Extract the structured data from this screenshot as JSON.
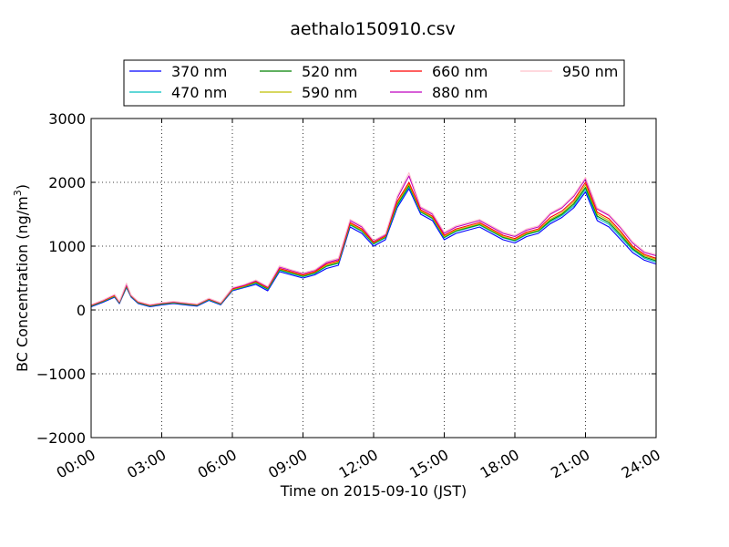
{
  "chart_data": {
    "type": "line",
    "title": "aethalo150910.csv",
    "xlabel": "Time on 2015-09-10 (JST)",
    "ylabel": "BC Concentration (ng/m",
    "ylabel_superscript": "3",
    "ylabel_suffix": ")",
    "xlim_hours": [
      0,
      24
    ],
    "ylim": [
      -2000,
      3000
    ],
    "x_ticks": [
      "00:00",
      "03:00",
      "06:00",
      "09:00",
      "12:00",
      "15:00",
      "18:00",
      "21:00",
      "24:00"
    ],
    "y_ticks": [
      -2000,
      -1000,
      0,
      1000,
      2000,
      3000
    ],
    "grid": true,
    "legend_placement": "top-center",
    "x_hours": [
      0,
      0.5,
      1,
      1.2,
      1.5,
      1.7,
      2,
      2.5,
      3,
      3.5,
      4,
      4.5,
      5,
      5.5,
      6,
      6.5,
      7,
      7.5,
      8,
      8.5,
      9,
      9.5,
      10,
      10.5,
      11,
      11.5,
      12,
      12.5,
      13,
      13.5,
      14,
      14.5,
      15,
      15.5,
      16,
      16.5,
      17,
      17.5,
      18,
      18.5,
      19,
      19.5,
      20,
      20.5,
      21,
      21.5,
      22,
      22.5,
      23,
      23.5,
      24
    ],
    "series": [
      {
        "name": "370 nm",
        "color": "#0000ff",
        "values": [
          50,
          120,
          200,
          100,
          350,
          200,
          100,
          50,
          80,
          100,
          80,
          60,
          150,
          80,
          300,
          350,
          400,
          300,
          600,
          550,
          500,
          550,
          650,
          700,
          1300,
          1200,
          1000,
          1100,
          1600,
          1900,
          1500,
          1400,
          1100,
          1200,
          1250,
          1300,
          1200,
          1100,
          1050,
          1150,
          1200,
          1350,
          1450,
          1600,
          1850,
          1400,
          1300,
          1100,
          900,
          780,
          720
        ]
      },
      {
        "name": "470 nm",
        "color": "#00bfbf",
        "values": [
          60,
          130,
          210,
          110,
          360,
          210,
          110,
          60,
          90,
          110,
          90,
          70,
          160,
          90,
          310,
          360,
          420,
          320,
          620,
          570,
          520,
          570,
          680,
          730,
          1330,
          1230,
          1030,
          1130,
          1630,
          1930,
          1530,
          1430,
          1130,
          1230,
          1280,
          1330,
          1230,
          1130,
          1080,
          1180,
          1230,
          1380,
          1480,
          1630,
          1890,
          1440,
          1340,
          1140,
          940,
          810,
          750
        ]
      },
      {
        "name": "520 nm",
        "color": "#008000",
        "values": [
          65,
          135,
          215,
          115,
          370,
          215,
          115,
          65,
          95,
          115,
          95,
          75,
          165,
          95,
          315,
          365,
          430,
          330,
          630,
          580,
          530,
          580,
          690,
          740,
          1340,
          1240,
          1040,
          1140,
          1650,
          1950,
          1540,
          1440,
          1140,
          1240,
          1290,
          1340,
          1240,
          1140,
          1090,
          1190,
          1240,
          1400,
          1500,
          1660,
          1920,
          1470,
          1370,
          1170,
          960,
          830,
          770
        ]
      },
      {
        "name": "590 nm",
        "color": "#bfbf00",
        "values": [
          70,
          140,
          220,
          120,
          380,
          220,
          120,
          70,
          100,
          120,
          100,
          80,
          170,
          100,
          320,
          370,
          440,
          340,
          640,
          590,
          540,
          590,
          700,
          750,
          1350,
          1250,
          1050,
          1150,
          1670,
          1970,
          1550,
          1450,
          1150,
          1250,
          1300,
          1350,
          1250,
          1150,
          1100,
          1200,
          1250,
          1420,
          1520,
          1690,
          1960,
          1500,
          1400,
          1200,
          980,
          850,
          790
        ]
      },
      {
        "name": "660 nm",
        "color": "#ff0000",
        "values": [
          75,
          145,
          230,
          125,
          390,
          225,
          125,
          75,
          105,
          125,
          105,
          85,
          175,
          105,
          330,
          380,
          450,
          350,
          650,
          600,
          550,
          600,
          720,
          770,
          1370,
          1270,
          1060,
          1160,
          1700,
          2000,
          1570,
          1470,
          1170,
          1270,
          1320,
          1370,
          1270,
          1170,
          1120,
          1220,
          1270,
          1450,
          1550,
          1720,
          2000,
          1530,
          1430,
          1230,
          1000,
          870,
          810
        ]
      },
      {
        "name": "880 nm",
        "color": "#bf00bf",
        "values": [
          80,
          150,
          240,
          130,
          400,
          230,
          130,
          80,
          110,
          130,
          110,
          90,
          180,
          110,
          340,
          390,
          460,
          360,
          670,
          620,
          570,
          620,
          740,
          790,
          1400,
          1300,
          1080,
          1180,
          1750,
          2100,
          1600,
          1500,
          1200,
          1300,
          1350,
          1400,
          1300,
          1200,
          1150,
          1250,
          1300,
          1500,
          1600,
          1780,
          2050,
          1580,
          1480,
          1280,
          1050,
          900,
          850
        ]
      },
      {
        "name": "950 nm",
        "color": "#ffc0cb",
        "values": [
          85,
          155,
          245,
          135,
          420,
          235,
          135,
          85,
          115,
          135,
          115,
          95,
          185,
          115,
          350,
          400,
          470,
          370,
          690,
          630,
          580,
          630,
          760,
          810,
          1420,
          1320,
          1090,
          1190,
          1780,
          2150,
          1620,
          1520,
          1220,
          1320,
          1370,
          1420,
          1320,
          1220,
          1170,
          1270,
          1320,
          1520,
          1620,
          1800,
          2080,
          1600,
          1500,
          1300,
          1070,
          920,
          870
        ]
      }
    ]
  }
}
